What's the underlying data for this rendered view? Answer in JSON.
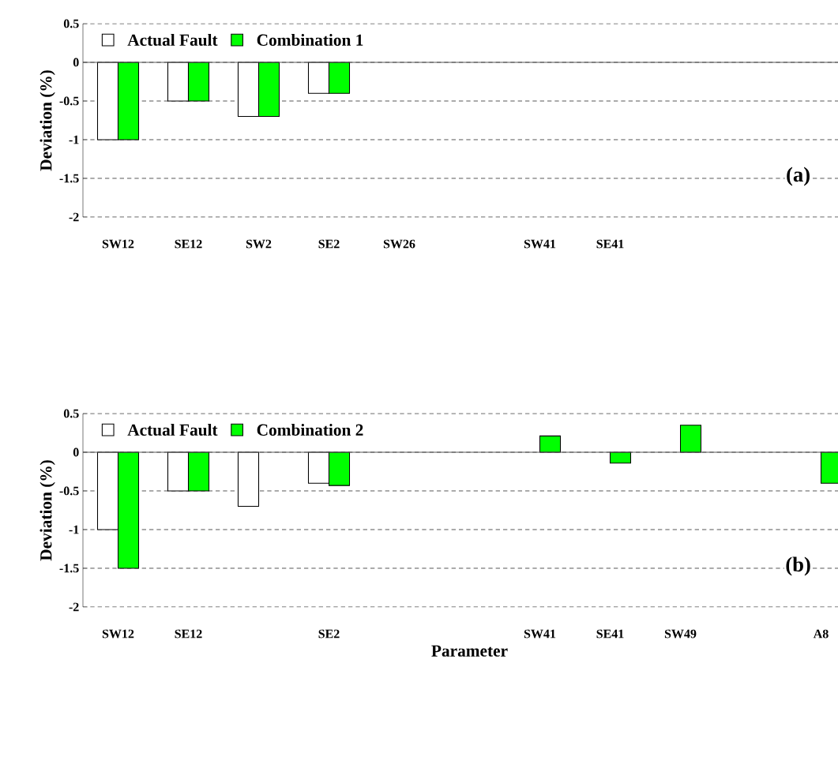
{
  "chart_data": [
    {
      "type": "bar",
      "categories": [
        "SW12",
        "SE12",
        "SW2",
        "SE2",
        "SW26",
        null,
        "SW41",
        "SE41",
        null,
        null,
        null
      ],
      "ylabel": "Deviation (%)",
      "ylim": [
        -2,
        0.5
      ],
      "yticks": [
        -2,
        -1.5,
        -1,
        -0.5,
        0,
        0.5
      ],
      "grid": "y",
      "legend": "top left",
      "annotations": [
        "(a)"
      ],
      "series": [
        {
          "name": "Actual Fault",
          "color": "#ffffff",
          "values": [
            -1,
            -0.5,
            -0.7,
            -0.4,
            null,
            null,
            null,
            null,
            null,
            null,
            null
          ]
        },
        {
          "name": "Combination 1",
          "color": "#00ff00",
          "values": [
            -1,
            -0.5,
            -0.7,
            -0.4,
            null,
            null,
            null,
            null,
            null,
            null,
            null
          ]
        }
      ]
    },
    {
      "type": "bar",
      "categories": [
        "SW12",
        "SE12",
        null,
        "SE2",
        null,
        null,
        "SW41",
        "SE41",
        "SW49",
        null,
        "A8"
      ],
      "xlabel": "Parameter",
      "ylabel": "Deviation (%)",
      "ylim": [
        -2,
        0.5
      ],
      "yticks": [
        -2,
        -1.5,
        -1,
        -0.5,
        0,
        0.5
      ],
      "grid": "y",
      "legend": "top left",
      "annotations": [
        "(b)"
      ],
      "series": [
        {
          "name": "Actual Fault",
          "color": "#ffffff",
          "values": [
            -1,
            -0.5,
            -0.7,
            -0.4,
            null,
            null,
            null,
            null,
            null,
            null,
            null
          ]
        },
        {
          "name": "Combination 2",
          "color": "#00ff00",
          "values": [
            -1.5,
            -0.5,
            null,
            -0.43,
            null,
            null,
            0.21,
            -0.14,
            0.35,
            null,
            -0.4
          ]
        }
      ]
    }
  ]
}
